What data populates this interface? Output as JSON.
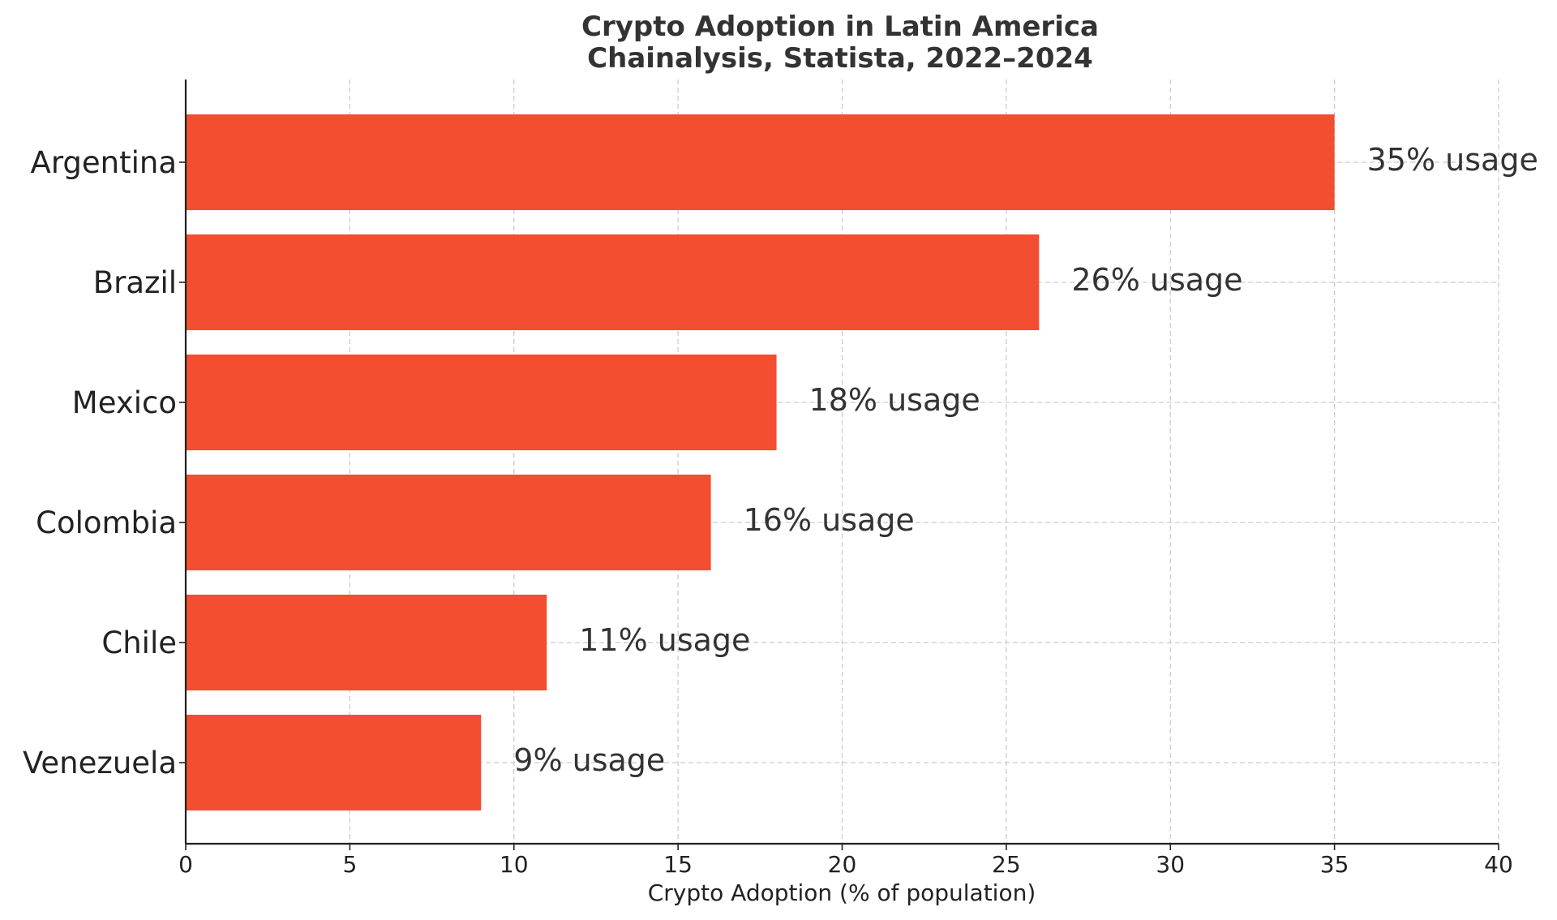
{
  "chart_data": {
    "type": "bar",
    "orientation": "horizontal",
    "title": "Crypto Adoption in Latin America",
    "subtitle": "Chainalysis, Statista, 2022–2024",
    "xlabel": "Crypto Adoption (% of population)",
    "ylabel": "",
    "xlim": [
      0,
      40
    ],
    "xticks": [
      "0",
      "5",
      "10",
      "15",
      "20",
      "25",
      "30",
      "35",
      "40"
    ],
    "grid": true,
    "bar_color": "#f24e2f",
    "categories": [
      "Argentina",
      "Brazil",
      "Mexico",
      "Colombia",
      "Chile",
      "Venezuela"
    ],
    "values": [
      35,
      26,
      18,
      16,
      11,
      9
    ],
    "data_labels": [
      "35% usage",
      "26% usage",
      "18% usage",
      "16% usage",
      "11% usage",
      "9% usage"
    ]
  }
}
